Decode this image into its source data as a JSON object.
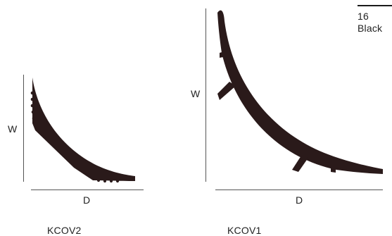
{
  "swatch": {
    "number": "16",
    "name": "Black",
    "color": "#2a1a1a"
  },
  "profiles": [
    {
      "code": "KCOV2",
      "width_label": "W",
      "depth_label": "D"
    },
    {
      "code": "KCOV1",
      "width_label": "W",
      "depth_label": "D"
    }
  ]
}
